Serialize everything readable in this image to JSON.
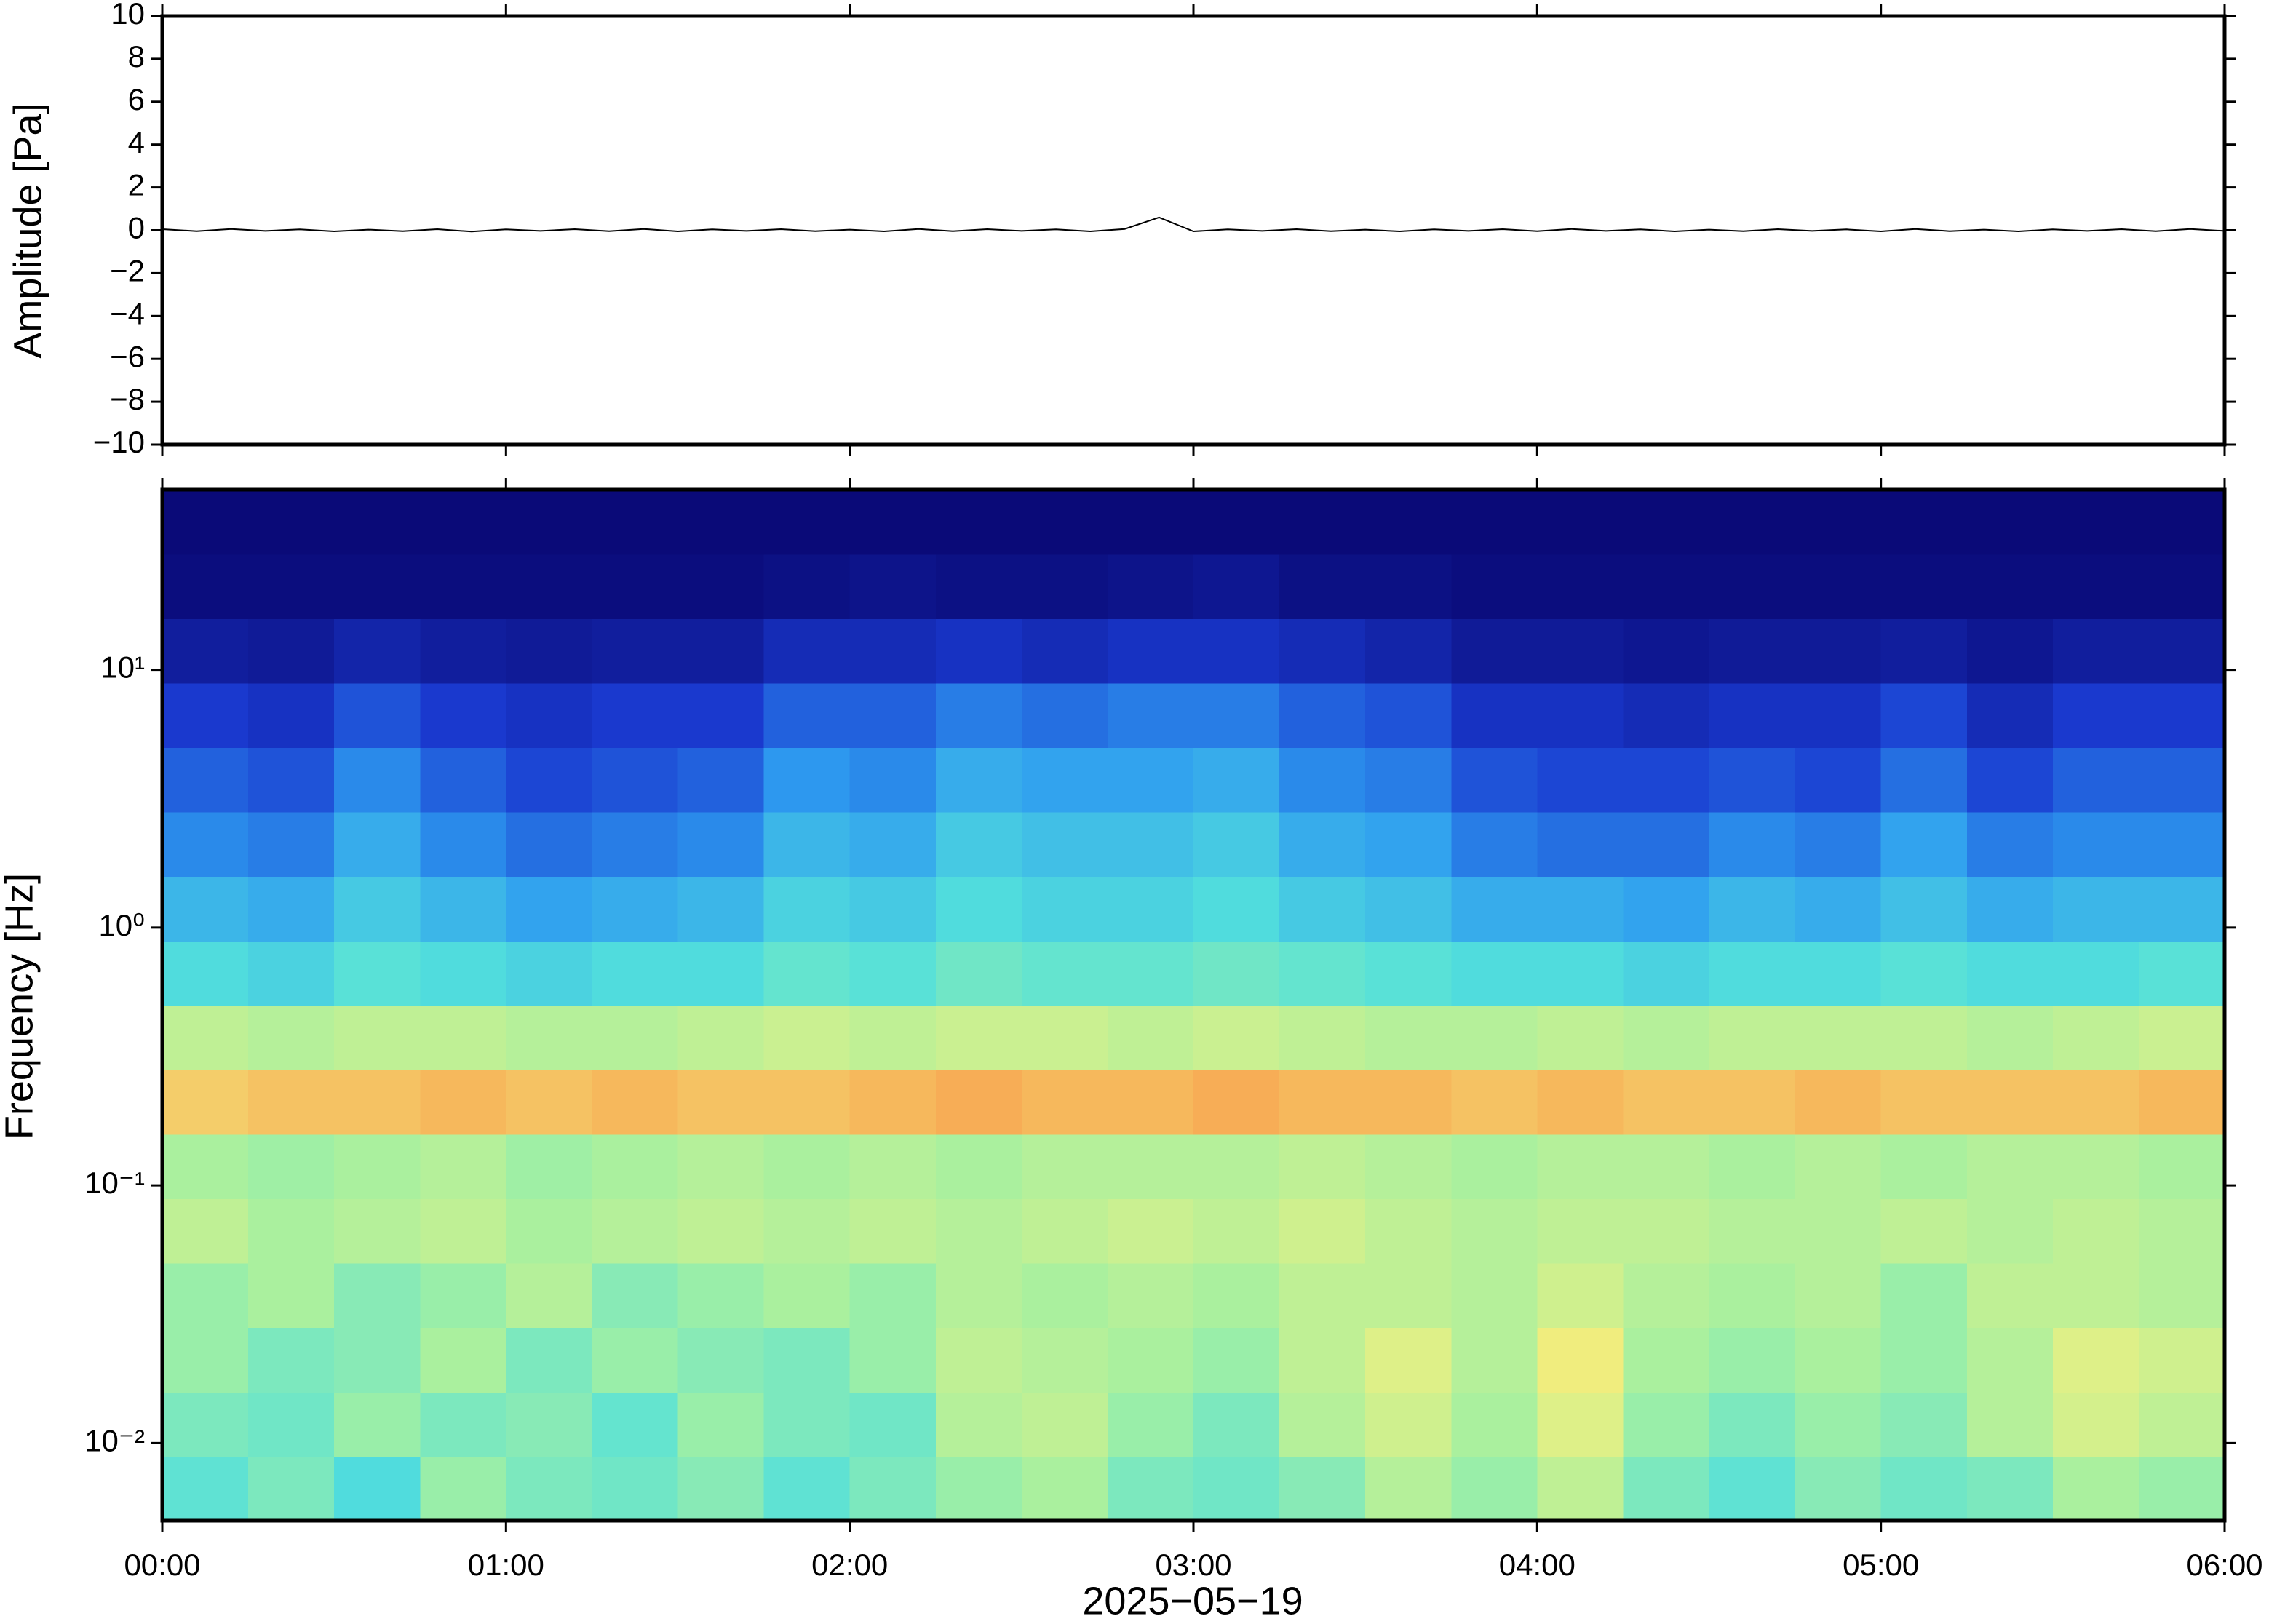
{
  "chart_data": [
    {
      "type": "line",
      "ylabel": "Amplitude [Pa]",
      "x": [
        0,
        6,
        12,
        18,
        24,
        30,
        36,
        42,
        48,
        54,
        60,
        66,
        72,
        78,
        84,
        90,
        96,
        102,
        108,
        114,
        120,
        126,
        132,
        138,
        144,
        150,
        156,
        162,
        168,
        174,
        180,
        186,
        192,
        198,
        204,
        210,
        216,
        222,
        228,
        234,
        240,
        246,
        252,
        258,
        264,
        270,
        276,
        282,
        288,
        294,
        300,
        306,
        312,
        318,
        324,
        330,
        336,
        342,
        348,
        354,
        360
      ],
      "series": [
        {
          "color": "#000000",
          "values": [
            0.05,
            -0.04,
            0.06,
            -0.03,
            0.04,
            -0.05,
            0.03,
            -0.04,
            0.05,
            -0.06,
            0.04,
            -0.03,
            0.05,
            -0.04,
            0.06,
            -0.05,
            0.04,
            -0.03,
            0.05,
            -0.04,
            0.03,
            -0.05,
            0.06,
            -0.04,
            0.05,
            -0.03,
            0.04,
            -0.05,
            0.06,
            0.6,
            -0.05,
            0.04,
            -0.03,
            0.05,
            -0.04,
            0.03,
            -0.05,
            0.04,
            -0.03,
            0.05,
            -0.04,
            0.06,
            -0.03,
            0.04,
            -0.05,
            0.03,
            -0.04,
            0.05,
            -0.03,
            0.04,
            -0.05,
            0.06,
            -0.04,
            0.03,
            -0.05,
            0.04,
            -0.03,
            0.05,
            -0.04,
            0.06,
            -0.03
          ]
        }
      ],
      "xlim": [
        0,
        360
      ],
      "xticks": [
        0,
        60,
        120,
        180,
        240,
        300,
        360
      ],
      "ylim": [
        -10,
        10
      ],
      "yticks": [
        {
          "value": -10,
          "label": "−10"
        },
        {
          "value": -8,
          "label": "−8"
        },
        {
          "value": -6,
          "label": "−6"
        },
        {
          "value": -4,
          "label": "−4"
        },
        {
          "value": -2,
          "label": "−2"
        },
        0,
        2,
        4,
        6,
        8,
        10
      ]
    },
    {
      "type": "heatmap",
      "ylabel": "Frequency [Hz]",
      "xlabel": "2025−05−19",
      "xbins": [
        0,
        15,
        30,
        45,
        60,
        75,
        90,
        105,
        120,
        135,
        150,
        165,
        180,
        195,
        210,
        225,
        240,
        255,
        270,
        285,
        300,
        315,
        330,
        345,
        360
      ],
      "ybins": [
        0.005,
        0.0089,
        0.0158,
        0.0281,
        0.05,
        0.0889,
        0.158,
        0.281,
        0.5,
        0.889,
        1.58,
        2.81,
        5,
        8.89,
        15.8,
        28.1,
        50
      ],
      "z": [
        [
          0.45,
          0.5,
          0.42,
          0.55,
          0.5,
          0.48,
          0.52,
          0.45,
          0.5,
          0.55,
          0.58,
          0.5,
          0.48,
          0.52,
          0.6,
          0.55,
          0.62,
          0.5,
          0.45,
          0.52,
          0.48,
          0.5,
          0.58,
          0.55
        ],
        [
          0.5,
          0.48,
          0.55,
          0.5,
          0.52,
          0.46,
          0.55,
          0.5,
          0.48,
          0.6,
          0.62,
          0.55,
          0.5,
          0.6,
          0.65,
          0.58,
          0.68,
          0.55,
          0.5,
          0.55,
          0.52,
          0.6,
          0.66,
          0.62
        ],
        [
          0.55,
          0.5,
          0.52,
          0.58,
          0.5,
          0.55,
          0.52,
          0.5,
          0.55,
          0.62,
          0.6,
          0.58,
          0.55,
          0.62,
          0.68,
          0.6,
          0.72,
          0.58,
          0.55,
          0.58,
          0.55,
          0.6,
          0.68,
          0.65
        ],
        [
          0.55,
          0.58,
          0.52,
          0.55,
          0.6,
          0.52,
          0.55,
          0.58,
          0.55,
          0.6,
          0.58,
          0.6,
          0.58,
          0.62,
          0.62,
          0.6,
          0.65,
          0.6,
          0.58,
          0.6,
          0.55,
          0.62,
          0.62,
          0.6
        ],
        [
          0.62,
          0.58,
          0.6,
          0.62,
          0.58,
          0.6,
          0.62,
          0.6,
          0.62,
          0.6,
          0.62,
          0.64,
          0.62,
          0.65,
          0.62,
          0.6,
          0.62,
          0.62,
          0.6,
          0.6,
          0.62,
          0.6,
          0.62,
          0.6
        ],
        [
          0.58,
          0.56,
          0.58,
          0.6,
          0.56,
          0.58,
          0.6,
          0.58,
          0.6,
          0.58,
          0.6,
          0.6,
          0.6,
          0.62,
          0.6,
          0.58,
          0.6,
          0.6,
          0.58,
          0.6,
          0.58,
          0.6,
          0.6,
          0.58
        ],
        [
          0.78,
          0.8,
          0.8,
          0.82,
          0.8,
          0.82,
          0.8,
          0.8,
          0.82,
          0.84,
          0.82,
          0.82,
          0.84,
          0.82,
          0.82,
          0.8,
          0.82,
          0.8,
          0.8,
          0.82,
          0.8,
          0.8,
          0.8,
          0.82
        ],
        [
          0.62,
          0.6,
          0.62,
          0.62,
          0.6,
          0.6,
          0.62,
          0.64,
          0.62,
          0.64,
          0.64,
          0.62,
          0.64,
          0.62,
          0.6,
          0.6,
          0.62,
          0.6,
          0.62,
          0.62,
          0.62,
          0.6,
          0.62,
          0.64
        ],
        [
          0.42,
          0.4,
          0.44,
          0.42,
          0.4,
          0.42,
          0.42,
          0.46,
          0.44,
          0.48,
          0.46,
          0.46,
          0.48,
          0.46,
          0.44,
          0.42,
          0.42,
          0.4,
          0.42,
          0.42,
          0.44,
          0.42,
          0.42,
          0.44
        ],
        [
          0.34,
          0.32,
          0.38,
          0.34,
          0.3,
          0.32,
          0.34,
          0.4,
          0.38,
          0.42,
          0.4,
          0.4,
          0.42,
          0.38,
          0.36,
          0.32,
          0.32,
          0.3,
          0.34,
          0.32,
          0.36,
          0.32,
          0.34,
          0.34
        ],
        [
          0.26,
          0.24,
          0.32,
          0.26,
          0.22,
          0.24,
          0.26,
          0.34,
          0.32,
          0.38,
          0.36,
          0.36,
          0.38,
          0.32,
          0.3,
          0.24,
          0.22,
          0.22,
          0.26,
          0.24,
          0.3,
          0.24,
          0.26,
          0.26
        ],
        [
          0.2,
          0.18,
          0.26,
          0.2,
          0.16,
          0.18,
          0.2,
          0.28,
          0.26,
          0.32,
          0.3,
          0.3,
          0.32,
          0.26,
          0.24,
          0.18,
          0.16,
          0.16,
          0.18,
          0.16,
          0.22,
          0.16,
          0.2,
          0.2
        ],
        [
          0.14,
          0.12,
          0.18,
          0.14,
          0.12,
          0.14,
          0.14,
          0.2,
          0.2,
          0.24,
          0.22,
          0.24,
          0.24,
          0.2,
          0.18,
          0.12,
          0.12,
          0.1,
          0.12,
          0.12,
          0.16,
          0.1,
          0.14,
          0.14
        ],
        [
          0.06,
          0.05,
          0.08,
          0.06,
          0.05,
          0.06,
          0.06,
          0.1,
          0.1,
          0.12,
          0.1,
          0.12,
          0.12,
          0.1,
          0.08,
          0.05,
          0.05,
          0.04,
          0.05,
          0.05,
          0.06,
          0.04,
          0.06,
          0.06
        ],
        [
          0.01,
          0.01,
          0.01,
          0.01,
          0.01,
          0.01,
          0.01,
          0.02,
          0.03,
          0.02,
          0.02,
          0.03,
          0.04,
          0.02,
          0.02,
          0.01,
          0.01,
          0.01,
          0.01,
          0.01,
          0.01,
          0.01,
          0.01,
          0.01
        ],
        [
          0,
          0,
          0,
          0,
          0,
          0,
          0,
          0,
          0,
          0,
          0,
          0,
          0,
          0,
          0,
          0,
          0,
          0,
          0,
          0,
          0,
          0,
          0,
          0
        ]
      ],
      "zlim": [
        0,
        1
      ],
      "colormap": [
        "#0a0a78",
        "#1a3ad0",
        "#2e9cf0",
        "#52e0dc",
        "#a6f0a0",
        "#f0f080",
        "#f8a450",
        "#e04020"
      ],
      "xlim": [
        0,
        360
      ],
      "xticks": [
        {
          "value": 0,
          "label": "00:00"
        },
        {
          "value": 60,
          "label": "01:00"
        },
        {
          "value": 120,
          "label": "02:00"
        },
        {
          "value": 180,
          "label": "03:00"
        },
        {
          "value": 240,
          "label": "04:00"
        },
        {
          "value": 300,
          "label": "05:00"
        },
        {
          "value": 360,
          "label": "06:00"
        }
      ],
      "ylim": [
        0.005,
        50
      ],
      "log_y": true,
      "yticks": [
        {
          "value": 0.01,
          "label": "10⁻²"
        },
        {
          "value": 0.1,
          "label": "10⁻¹"
        },
        {
          "value": 1,
          "label": "10⁰"
        },
        {
          "value": 10,
          "label": "10¹"
        }
      ]
    }
  ]
}
